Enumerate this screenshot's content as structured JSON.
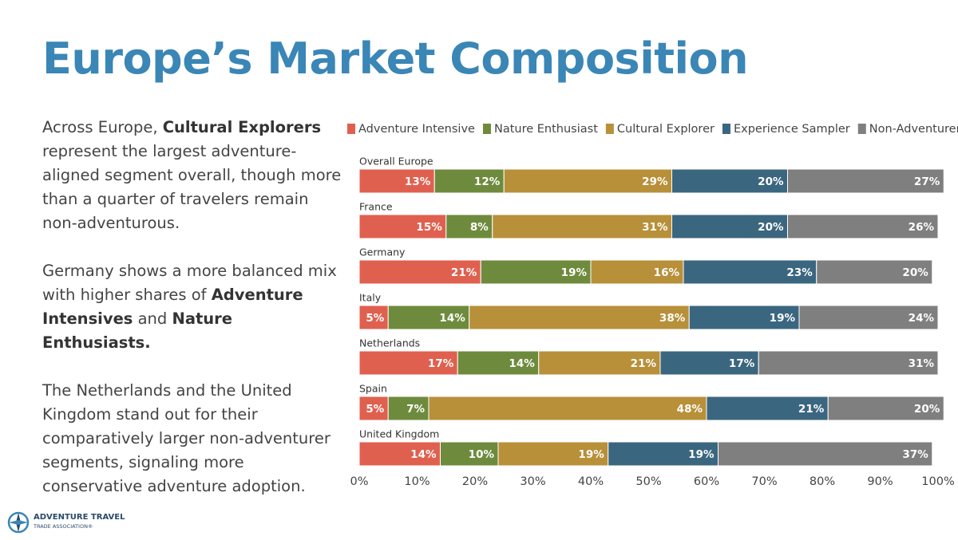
{
  "title": "Europe’s Market Composition",
  "paragraphs": [
    [
      {
        "text": "Across Europe, ",
        "bold": false
      },
      {
        "text": "Cultural Explorers",
        "bold": true
      },
      {
        "text": " represent the largest adventure-aligned segment overall, though more than a quarter of travelers remain non-adventurous.",
        "bold": false
      }
    ],
    [
      {
        "text": "Germany shows a more balanced mix with higher shares of ",
        "bold": false
      },
      {
        "text": "Adventure Intensives",
        "bold": true
      },
      {
        "text": " and ",
        "bold": false
      },
      {
        "text": "Nature Enthusiasts.",
        "bold": true
      }
    ],
    [
      {
        "text": "The Netherlands and the United Kingdom stand out for their comparatively larger non-adventurer segments, signaling more conservative adventure adoption.",
        "bold": false
      }
    ]
  ],
  "logo": {
    "line1": "ADVENTURE TRAVEL",
    "line2": "TRADE ASSOCIATION®"
  },
  "chart_data": {
    "type": "stacked_bar_horizontal",
    "categories": [
      "Overall Europe",
      "France",
      "Germany",
      "Italy",
      "Netherlands",
      "Spain",
      "United Kingdom"
    ],
    "series": [
      {
        "name": "Adventure Intensive",
        "color": "#e0604f",
        "values": [
          13,
          15,
          21,
          5,
          17,
          5,
          14
        ],
        "value_labels": [
          "13%",
          "15%",
          "21%",
          "5%",
          "17%",
          "5%",
          "14%"
        ]
      },
      {
        "name": "Nature Enthusiast",
        "color": "#6e8b3d",
        "values": [
          12,
          8,
          19,
          14,
          14,
          7,
          10
        ],
        "value_labels": [
          "12%",
          "8%",
          "19%",
          "14%",
          "14%",
          "7%",
          "10%"
        ]
      },
      {
        "name": "Cultural Explorer",
        "color": "#b8903a",
        "values": [
          29,
          31,
          16,
          38,
          21,
          48,
          19
        ],
        "value_labels": [
          "29%",
          "31%",
          "16%",
          "38%",
          "21%",
          "48%",
          "19%"
        ]
      },
      {
        "name": "Experience Sampler",
        "color": "#3b6680",
        "values": [
          20,
          20,
          23,
          19,
          17,
          21,
          19
        ],
        "value_labels": [
          "20%",
          "20%",
          "23%",
          "19%",
          "17%",
          "21%",
          "19%"
        ]
      },
      {
        "name": "Non-Adventurer",
        "color": "#7f7f7f",
        "values": [
          27,
          26,
          20,
          24,
          31,
          20,
          37
        ],
        "value_labels": [
          "27%",
          "26%",
          "20%",
          "24%",
          "31%",
          "20%",
          "37%"
        ]
      }
    ],
    "xlim": [
      0,
      100
    ],
    "xticks": [
      {
        "value": 0,
        "label": "0%"
      },
      {
        "value": 10,
        "label": "10%"
      },
      {
        "value": 20,
        "label": "20%"
      },
      {
        "value": 30,
        "label": "30%"
      },
      {
        "value": 40,
        "label": "40%"
      },
      {
        "value": 50,
        "label": "50%"
      },
      {
        "value": 60,
        "label": "60%"
      },
      {
        "value": 70,
        "label": "70%"
      },
      {
        "value": 80,
        "label": "80%"
      },
      {
        "value": 90,
        "label": "90%"
      },
      {
        "value": 100,
        "label": "100%"
      }
    ],
    "legend": "top"
  }
}
